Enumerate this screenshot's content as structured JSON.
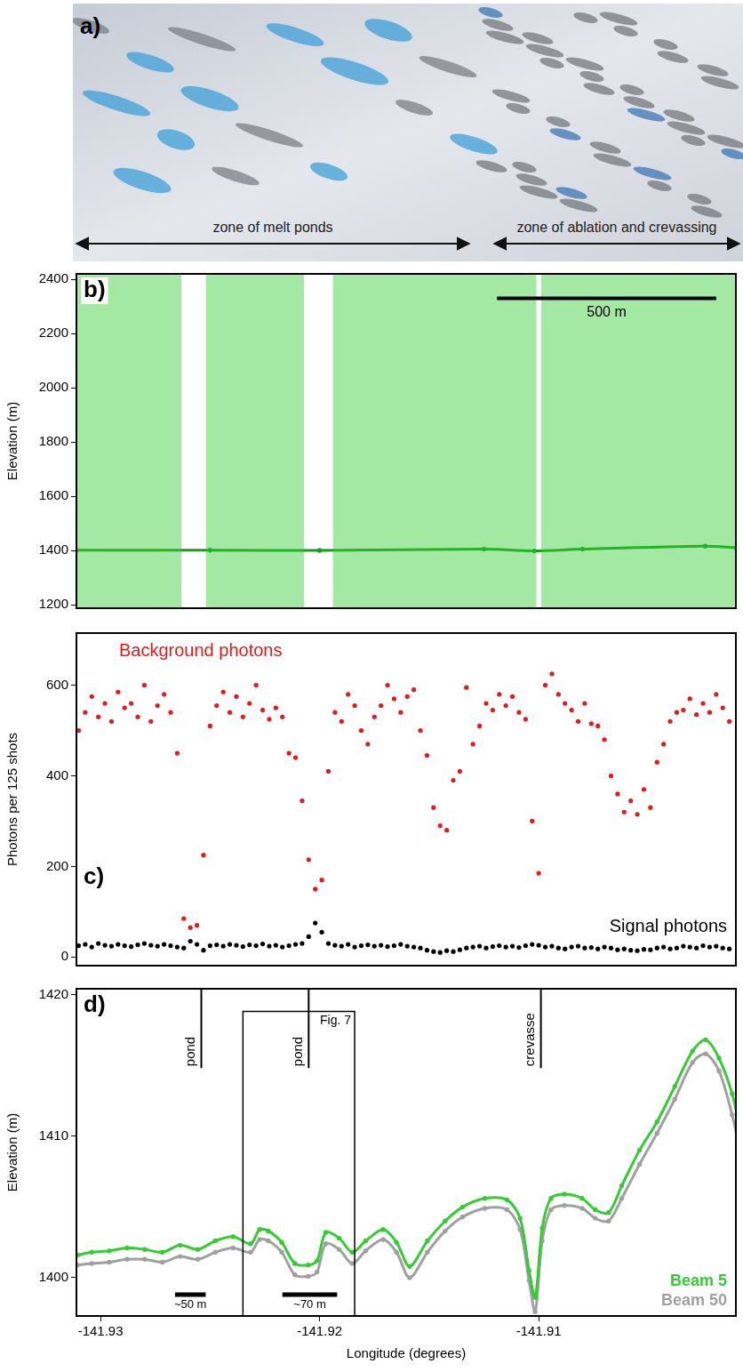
{
  "photo": {
    "panel": "a)",
    "zones": [
      "zone of melt ponds",
      "zone of ablation and crevassing"
    ]
  },
  "chart_data": [
    {
      "type": "line",
      "panel": "b)",
      "ylabel": "Elevation (m)",
      "xlim": [
        -141.9311,
        -141.901
      ],
      "ylim": [
        1188,
        2420
      ],
      "yticks": [
        1200,
        1400,
        1600,
        1800,
        2000,
        2200,
        2400
      ],
      "tick_labels": "y",
      "grid": false,
      "series": [
        {
          "type": "area",
          "color": "#33cc33",
          "x": [
            -141.9311,
            -141.9263,
            -141.92575,
            -141.9252,
            -141.9207,
            -141.92005,
            -141.9194,
            -141.9101,
            -141.91,
            -141.9099,
            -141.901
          ],
          "values": [
            2420,
            2420,
            null,
            2420,
            2420,
            null,
            2420,
            2420,
            null,
            2420,
            2420
          ]
        },
        {
          "type": "line",
          "color": "#1a9e1a",
          "x": [
            -141.9311,
            -141.925,
            -141.92,
            -141.9125,
            -141.9102,
            -141.908,
            -141.9024,
            -141.901
          ],
          "values": [
            1401.6,
            1402,
            1401,
            1405.6,
            1399,
            1405.6,
            1416.8,
            1411
          ]
        }
      ],
      "scale_bar": {
        "label": "500 m",
        "x": [
          -141.9119,
          -141.9019
        ],
        "y": 2330
      }
    },
    {
      "type": "scatter",
      "panel": "c)",
      "ylabel": "Photons per 125 shots",
      "xlim": [
        -141.9311,
        -141.901
      ],
      "ylim": [
        -19,
        715
      ],
      "yticks": [
        0,
        200,
        400,
        600
      ],
      "tick_labels": "y",
      "grid": false,
      "legend": "inline",
      "x": [
        -141.931,
        -141.9307,
        -141.9304,
        -141.9301,
        -141.9298,
        -141.9295,
        -141.9292,
        -141.9289,
        -141.9286,
        -141.9283,
        -141.928,
        -141.9277,
        -141.9274,
        -141.9271,
        -141.9268,
        -141.9265,
        -141.9262,
        -141.9259,
        -141.9256,
        -141.9253,
        -141.925,
        -141.9247,
        -141.9244,
        -141.9241,
        -141.9238,
        -141.9235,
        -141.9232,
        -141.9229,
        -141.9226,
        -141.9223,
        -141.922,
        -141.9217,
        -141.9214,
        -141.9211,
        -141.9208,
        -141.9205,
        -141.9202,
        -141.9199,
        -141.9196,
        -141.9193,
        -141.919,
        -141.9187,
        -141.9184,
        -141.9181,
        -141.9178,
        -141.9175,
        -141.9172,
        -141.9169,
        -141.9166,
        -141.9163,
        -141.916,
        -141.9157,
        -141.9154,
        -141.9151,
        -141.9148,
        -141.9145,
        -141.9142,
        -141.9139,
        -141.9136,
        -141.9133,
        -141.913,
        -141.9127,
        -141.9124,
        -141.9121,
        -141.9118,
        -141.9115,
        -141.9112,
        -141.9109,
        -141.9106,
        -141.9103,
        -141.91,
        -141.9097,
        -141.9094,
        -141.9091,
        -141.9088,
        -141.9085,
        -141.9082,
        -141.9079,
        -141.9076,
        -141.9073,
        -141.907,
        -141.9067,
        -141.9064,
        -141.9061,
        -141.9058,
        -141.9055,
        -141.9052,
        -141.9049,
        -141.9046,
        -141.9043,
        -141.904,
        -141.9037,
        -141.9034,
        -141.9031,
        -141.9028,
        -141.9025,
        -141.9022,
        -141.9019,
        -141.9016,
        -141.9013
      ],
      "series": [
        {
          "name": "Background photons",
          "color": "#e41a1c",
          "marker": "dot",
          "values": [
            500,
            540,
            575,
            530,
            560,
            520,
            585,
            550,
            560,
            530,
            600,
            520,
            555,
            580,
            540,
            450,
            85,
            65,
            70,
            225,
            510,
            555,
            585,
            540,
            575,
            530,
            560,
            600,
            545,
            525,
            550,
            530,
            450,
            440,
            345,
            215,
            150,
            170,
            410,
            540,
            520,
            580,
            555,
            500,
            470,
            530,
            555,
            600,
            570,
            540,
            575,
            590,
            500,
            445,
            330,
            290,
            280,
            390,
            410,
            595,
            470,
            510,
            560,
            545,
            580,
            555,
            575,
            540,
            525,
            300,
            185,
            600,
            625,
            580,
            560,
            545,
            520,
            560,
            515,
            510,
            480,
            400,
            360,
            320,
            345,
            315,
            370,
            330,
            430,
            470,
            520,
            540,
            545,
            570,
            535,
            560,
            540,
            580,
            550,
            520
          ]
        },
        {
          "name": "Signal photons",
          "color": "#000000",
          "marker": "dot",
          "values": [
            25,
            28,
            22,
            30,
            26,
            24,
            28,
            25,
            23,
            27,
            30,
            26,
            24,
            28,
            25,
            22,
            20,
            35,
            28,
            15,
            25,
            27,
            24,
            28,
            26,
            23,
            27,
            25,
            29,
            24,
            26,
            22,
            25,
            28,
            30,
            45,
            75,
            55,
            30,
            26,
            24,
            28,
            22,
            25,
            27,
            24,
            26,
            23,
            25,
            28,
            24,
            22,
            20,
            15,
            12,
            10,
            14,
            12,
            16,
            20,
            22,
            24,
            20,
            23,
            25,
            22,
            24,
            21,
            25,
            28,
            26,
            22,
            24,
            20,
            18,
            22,
            24,
            20,
            21,
            18,
            22,
            20,
            16,
            18,
            15,
            14,
            17,
            16,
            20,
            22,
            18,
            20,
            24,
            22,
            20,
            25,
            22,
            24,
            20,
            18
          ]
        }
      ]
    },
    {
      "type": "line",
      "panel": "d)",
      "xlabel": "Longitude (degrees)",
      "ylabel": "Elevation (m)",
      "xlim": [
        -141.9311,
        -141.901
      ],
      "ylim": [
        1397.3,
        1420.4
      ],
      "xticks": [
        -141.93,
        -141.92,
        -141.91
      ],
      "yticks": [
        1400,
        1410,
        1420
      ],
      "grid": false,
      "legend": "lower right",
      "x": [
        -141.93105,
        -141.9304,
        -141.9296,
        -141.92879,
        -141.92798,
        -141.92718,
        -141.92637,
        -141.92556,
        -141.92476,
        -141.92395,
        -141.92315,
        -141.92274,
        -141.92234,
        -141.92173,
        -141.92113,
        -141.92052,
        -141.92012,
        -141.91972,
        -141.91911,
        -141.91851,
        -141.9179,
        -141.9171,
        -141.91649,
        -141.91589,
        -141.91508,
        -141.91427,
        -141.91347,
        -141.91246,
        -141.91145,
        -141.91085,
        -141.91044,
        -141.91016,
        -141.90984,
        -141.90944,
        -141.90883,
        -141.90802,
        -141.90742,
        -141.90681,
        -141.90621,
        -141.9054,
        -141.9046,
        -141.90379,
        -141.90298,
        -141.90238,
        -141.90177,
        -141.90117,
        -141.90089
      ],
      "series": [
        {
          "name": "Beam 5",
          "color": "#33cc33",
          "values": [
            1401.6,
            1401.8,
            1401.9,
            1402.1,
            1402.0,
            1401.8,
            1402.3,
            1402.0,
            1402.6,
            1402.9,
            1402.4,
            1403.4,
            1403.3,
            1402.5,
            1401.0,
            1400.9,
            1401.2,
            1403.2,
            1402.8,
            1401.8,
            1402.6,
            1403.4,
            1402.5,
            1400.8,
            1402.6,
            1404.0,
            1405.0,
            1405.6,
            1405.5,
            1404.2,
            1400.5,
            1398.6,
            1403.5,
            1405.6,
            1405.9,
            1405.6,
            1404.8,
            1404.6,
            1406.5,
            1409.0,
            1411.0,
            1413.5,
            1416.0,
            1416.8,
            1415.5,
            1413.0,
            1411.0
          ]
        },
        {
          "name": "Beam 50",
          "color": "#a0a0a0",
          "values": [
            1400.9,
            1401.0,
            1401.1,
            1401.3,
            1401.3,
            1401.1,
            1401.5,
            1401.3,
            1401.8,
            1402.1,
            1401.8,
            1402.7,
            1402.6,
            1401.8,
            1400.2,
            1400.1,
            1400.4,
            1402.4,
            1402.0,
            1401.0,
            1401.9,
            1402.7,
            1401.8,
            1400.0,
            1401.8,
            1403.3,
            1404.3,
            1404.9,
            1404.8,
            1403.4,
            1399.8,
            1397.6,
            1402.6,
            1404.8,
            1405.1,
            1404.9,
            1404.2,
            1404.0,
            1405.6,
            1408.0,
            1410.2,
            1412.6,
            1415.2,
            1415.8,
            1414.6,
            1411.5,
            1409.5
          ]
        }
      ],
      "markers": [
        {
          "label": "pond",
          "x": -141.9254,
          "y": [
            1414.8,
            1420.4
          ]
        },
        {
          "label": "pond",
          "x": -141.9205,
          "y": [
            1414.8,
            1420.4
          ]
        },
        {
          "label": "crevasse",
          "x": -141.9099,
          "y": [
            1414.8,
            1420.4
          ]
        }
      ],
      "box": {
        "label": "Fig. 7",
        "x": [
          -141.9235,
          -141.9184
        ],
        "y": [
          1397.3,
          1418.8
        ]
      },
      "scale_bars": [
        {
          "label": "~50 m",
          "x": [
            -141.9266,
            -141.9252
          ],
          "y": 1398.8
        },
        {
          "label": "~70 m",
          "x": [
            -141.9217,
            -141.9192
          ],
          "y": 1398.8
        }
      ]
    }
  ]
}
